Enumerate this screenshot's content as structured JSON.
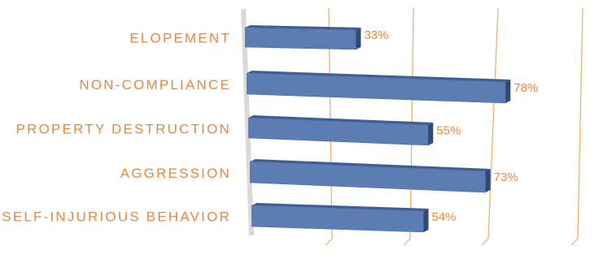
{
  "chart_data": {
    "type": "bar",
    "orientation": "horizontal",
    "style": "3d-perspective",
    "categories": [
      "ELOPEMENT",
      "NON-COMPLIANCE",
      "PROPERTY DESTRUCTION",
      "AGGRESSION",
      "SELF-INJURIOUS BEHAVIOR"
    ],
    "values": [
      33,
      78,
      55,
      73,
      54
    ],
    "value_labels": [
      "33%",
      "78%",
      "55%",
      "73%",
      "54%"
    ],
    "xlim": [
      0,
      100
    ],
    "grid": true,
    "legend": "none",
    "colors": {
      "bar_front": "#5c7db2",
      "bar_top": "#3f5f94",
      "bar_end": "#2f4a78",
      "label": "#e8873a",
      "gridline": "#f2a868",
      "back_wall": "#d9d9d9"
    }
  }
}
